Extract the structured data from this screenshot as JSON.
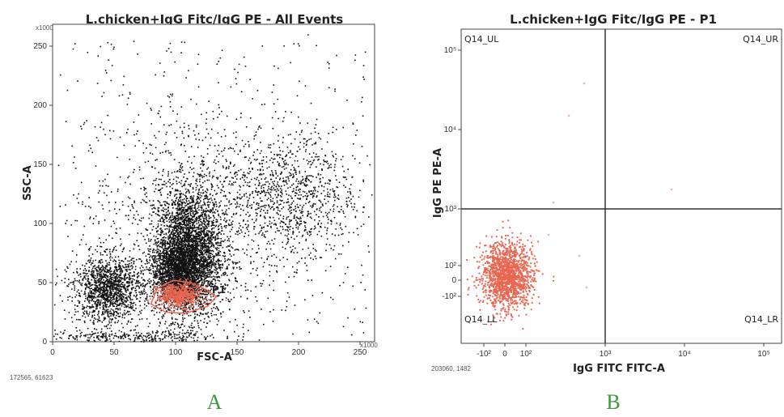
{
  "panels": [
    {
      "letter": "A",
      "footer": "172565, 61623",
      "chart_data": {
        "type": "scatter",
        "title": "L.chicken+IgG Fitc/IgG PE - All Events",
        "xlabel": "FSC-A",
        "ylabel": "SSC-A",
        "x_multiplier": "x1000",
        "y_multiplier": "x1000",
        "xlim": [
          0,
          262
        ],
        "ylim": [
          0,
          262
        ],
        "xticks": [
          "0",
          "50",
          "100",
          "150",
          "200",
          "250"
        ],
        "yticks": [
          "0",
          "50",
          "100",
          "150",
          "200",
          "250"
        ],
        "point_color": "#111111",
        "clusters": [
          {
            "cx": 110,
            "cy": 75,
            "sx": 14,
            "sy": 28,
            "n": 3500
          },
          {
            "cx": 100,
            "cy": 60,
            "sx": 10,
            "sy": 12,
            "n": 1200
          },
          {
            "cx": 45,
            "cy": 45,
            "sx": 14,
            "sy": 14,
            "n": 1400
          },
          {
            "cx": 190,
            "cy": 125,
            "sx": 28,
            "sy": 25,
            "n": 900
          },
          {
            "cx": 120,
            "cy": 110,
            "sx": 55,
            "sy": 55,
            "n": 900
          },
          {
            "cx": 60,
            "cy": 4,
            "sx": 40,
            "sy": 3,
            "n": 300
          }
        ],
        "gate": {
          "name": "P1",
          "color": "#e8664f",
          "polygon": [
            [
              80,
              32
            ],
            [
              85,
              45
            ],
            [
              98,
              52
            ],
            [
              112,
              50
            ],
            [
              125,
              44
            ],
            [
              133,
              38
            ],
            [
              126,
              30
            ],
            [
              108,
              24
            ],
            [
              92,
              25
            ]
          ]
        }
      }
    },
    {
      "letter": "B",
      "footer": "203060, 1482",
      "chart_data": {
        "type": "scatter",
        "scale": "biexponential",
        "title": "L.chicken+IgG Fitc/IgG PE - P1",
        "xlabel": "IgG FITC FITC-A",
        "ylabel": "IgG PE PE-A",
        "xticks": [
          "-10²",
          "0",
          "10²",
          "10³",
          "10⁴",
          "10⁵"
        ],
        "yticks": [
          "-10²",
          "0",
          "10²",
          "10³",
          "10⁴",
          "10⁵"
        ],
        "quadrant_gate": {
          "x": 1000,
          "y": 1000
        },
        "quadrants": [
          "Q14_UL",
          "Q14_UR",
          "Q14_LL",
          "Q14_LR"
        ],
        "point_color": "#e8664f",
        "cluster": {
          "cx": 0,
          "cy": 0,
          "n": 1482
        },
        "outliers": [
          [
            4000,
            30000
          ],
          [
            2500,
            12000
          ],
          [
            8000,
            2500
          ],
          [
            20000,
            5000
          ],
          [
            2000,
            40
          ]
        ]
      }
    }
  ]
}
